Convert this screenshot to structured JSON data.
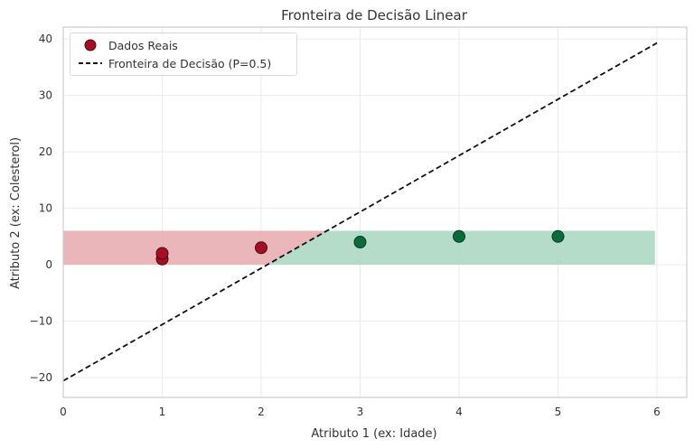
{
  "chart_data": {
    "type": "scatter",
    "title": "Fronteira de Decisão Linear",
    "xlabel": "Atributo 1 (ex: Idade)",
    "ylabel": "Atributo 2 (ex: Colesterol)",
    "xlim": [
      0,
      6.3
    ],
    "ylim": [
      -23.5,
      42
    ],
    "xticks": [
      0,
      1,
      2,
      3,
      4,
      5,
      6
    ],
    "yticks": [
      -20,
      -10,
      0,
      10,
      20,
      30,
      40
    ],
    "grid": true,
    "legend_position": "upper left",
    "series": [
      {
        "name": "Dados Reais",
        "kind": "scatter",
        "class": 0,
        "color": "#a50f26",
        "points": [
          [
            1,
            1
          ],
          [
            1,
            2
          ],
          [
            2,
            3
          ]
        ]
      },
      {
        "name": "Dados Reais",
        "kind": "scatter",
        "class": 1,
        "color": "#0b6b3a",
        "points": [
          [
            3,
            4
          ],
          [
            4,
            5
          ],
          [
            5,
            5
          ]
        ]
      },
      {
        "name": "Fronteira de Decisão (P=0.5)",
        "kind": "line",
        "style": "dashed",
        "color": "#111111",
        "points": [
          [
            0,
            -20.6
          ],
          [
            6,
            39.3
          ]
        ]
      }
    ],
    "regions": [
      {
        "label": "class 0 region",
        "color": "#e8a9ae",
        "x": [
          0,
          5.98
        ],
        "y": [
          0,
          6
        ]
      },
      {
        "label": "class 1 region",
        "color": "#a8d5bf",
        "x": [
          0,
          5.98
        ],
        "y": [
          0,
          6
        ]
      }
    ]
  },
  "legend": {
    "items": [
      {
        "label": "Dados Reais",
        "marker": "circle",
        "color": "#a50f26"
      },
      {
        "label": "Fronteira de Decisão (P=0.5)",
        "marker": "dashed-line",
        "color": "#111111"
      }
    ]
  }
}
